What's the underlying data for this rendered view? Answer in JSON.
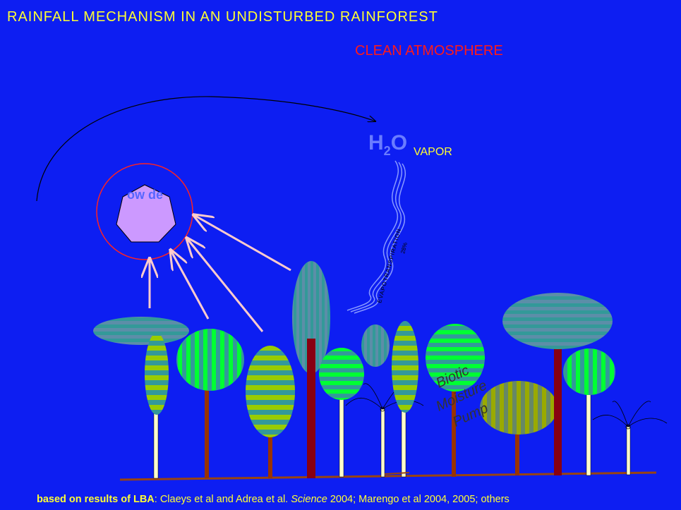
{
  "header": {
    "title": "RAINFALL MECHANISM IN AN UNDISTURBED RAINFOREST",
    "subtitle": "CLEAN ATMOSPHERE"
  },
  "labels": {
    "h2o": {
      "h": "H",
      "sub": "2",
      "o": "O"
    },
    "vapor": "VAPOR",
    "circle_text": "ow de",
    "evapotranspiration": "EVAPOTRANSPIRATION",
    "percent": "28%",
    "pump": [
      "Biotic",
      "Moisture",
      "Pump"
    ]
  },
  "footer": {
    "bold": "based on results of LBA",
    "text1": ": Claeys et al and Adrea et al. ",
    "italic": "Science",
    "text2": " 2004; Marengo et al 2004, 2005; others"
  }
}
